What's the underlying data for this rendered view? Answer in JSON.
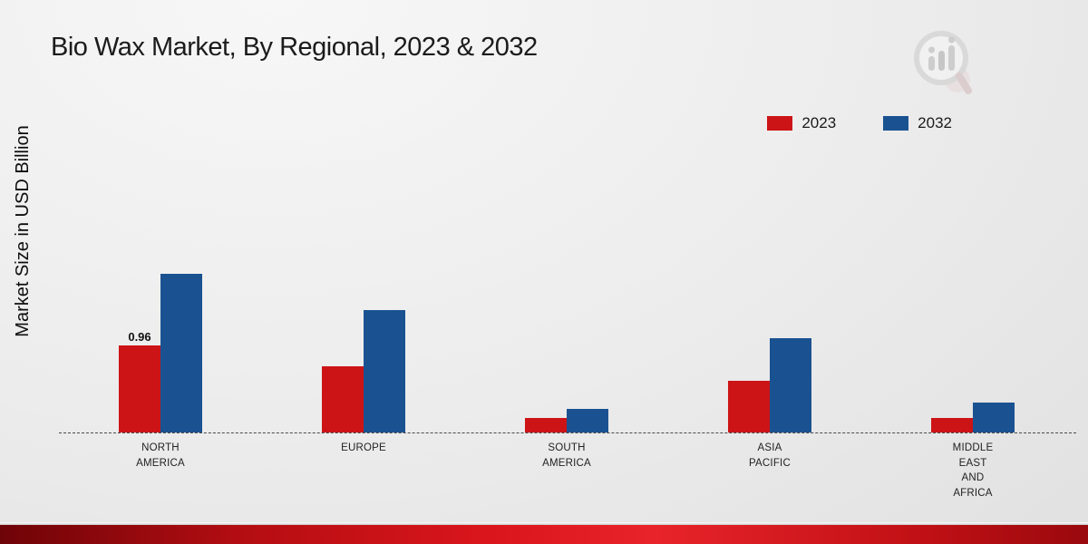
{
  "title": "Bio Wax Market, By Regional, 2023 & 2032",
  "ylabel": "Market Size in USD Billion",
  "colors": {
    "series_2023": "#cc1417",
    "series_2032": "#1a5291"
  },
  "chart_data": {
    "type": "bar",
    "title": "Bio Wax Market, By Regional, 2023 & 2032",
    "xlabel": "",
    "ylabel": "Market Size in USD Billion",
    "ylim": [
      0,
      2.0
    ],
    "grid": false,
    "legend_position": "top-right",
    "categories": [
      "NORTH\nAMERICA",
      "EUROPE",
      "SOUTH\nAMERICA",
      "ASIA\nPACIFIC",
      "MIDDLE\nEAST\nAND\nAFRICA"
    ],
    "series": [
      {
        "name": "2023",
        "color": "#cc1417",
        "values": [
          0.96,
          0.73,
          0.16,
          0.57,
          0.16
        ],
        "labels": [
          "0.96",
          "",
          "",
          "",
          ""
        ]
      },
      {
        "name": "2032",
        "color": "#1a5291",
        "values": [
          1.75,
          1.35,
          0.26,
          1.04,
          0.33
        ],
        "labels": [
          "",
          "",
          "",
          "",
          ""
        ]
      }
    ],
    "annotations": [
      {
        "series": "2023",
        "category": "NORTH AMERICA",
        "text": "0.96"
      }
    ]
  }
}
